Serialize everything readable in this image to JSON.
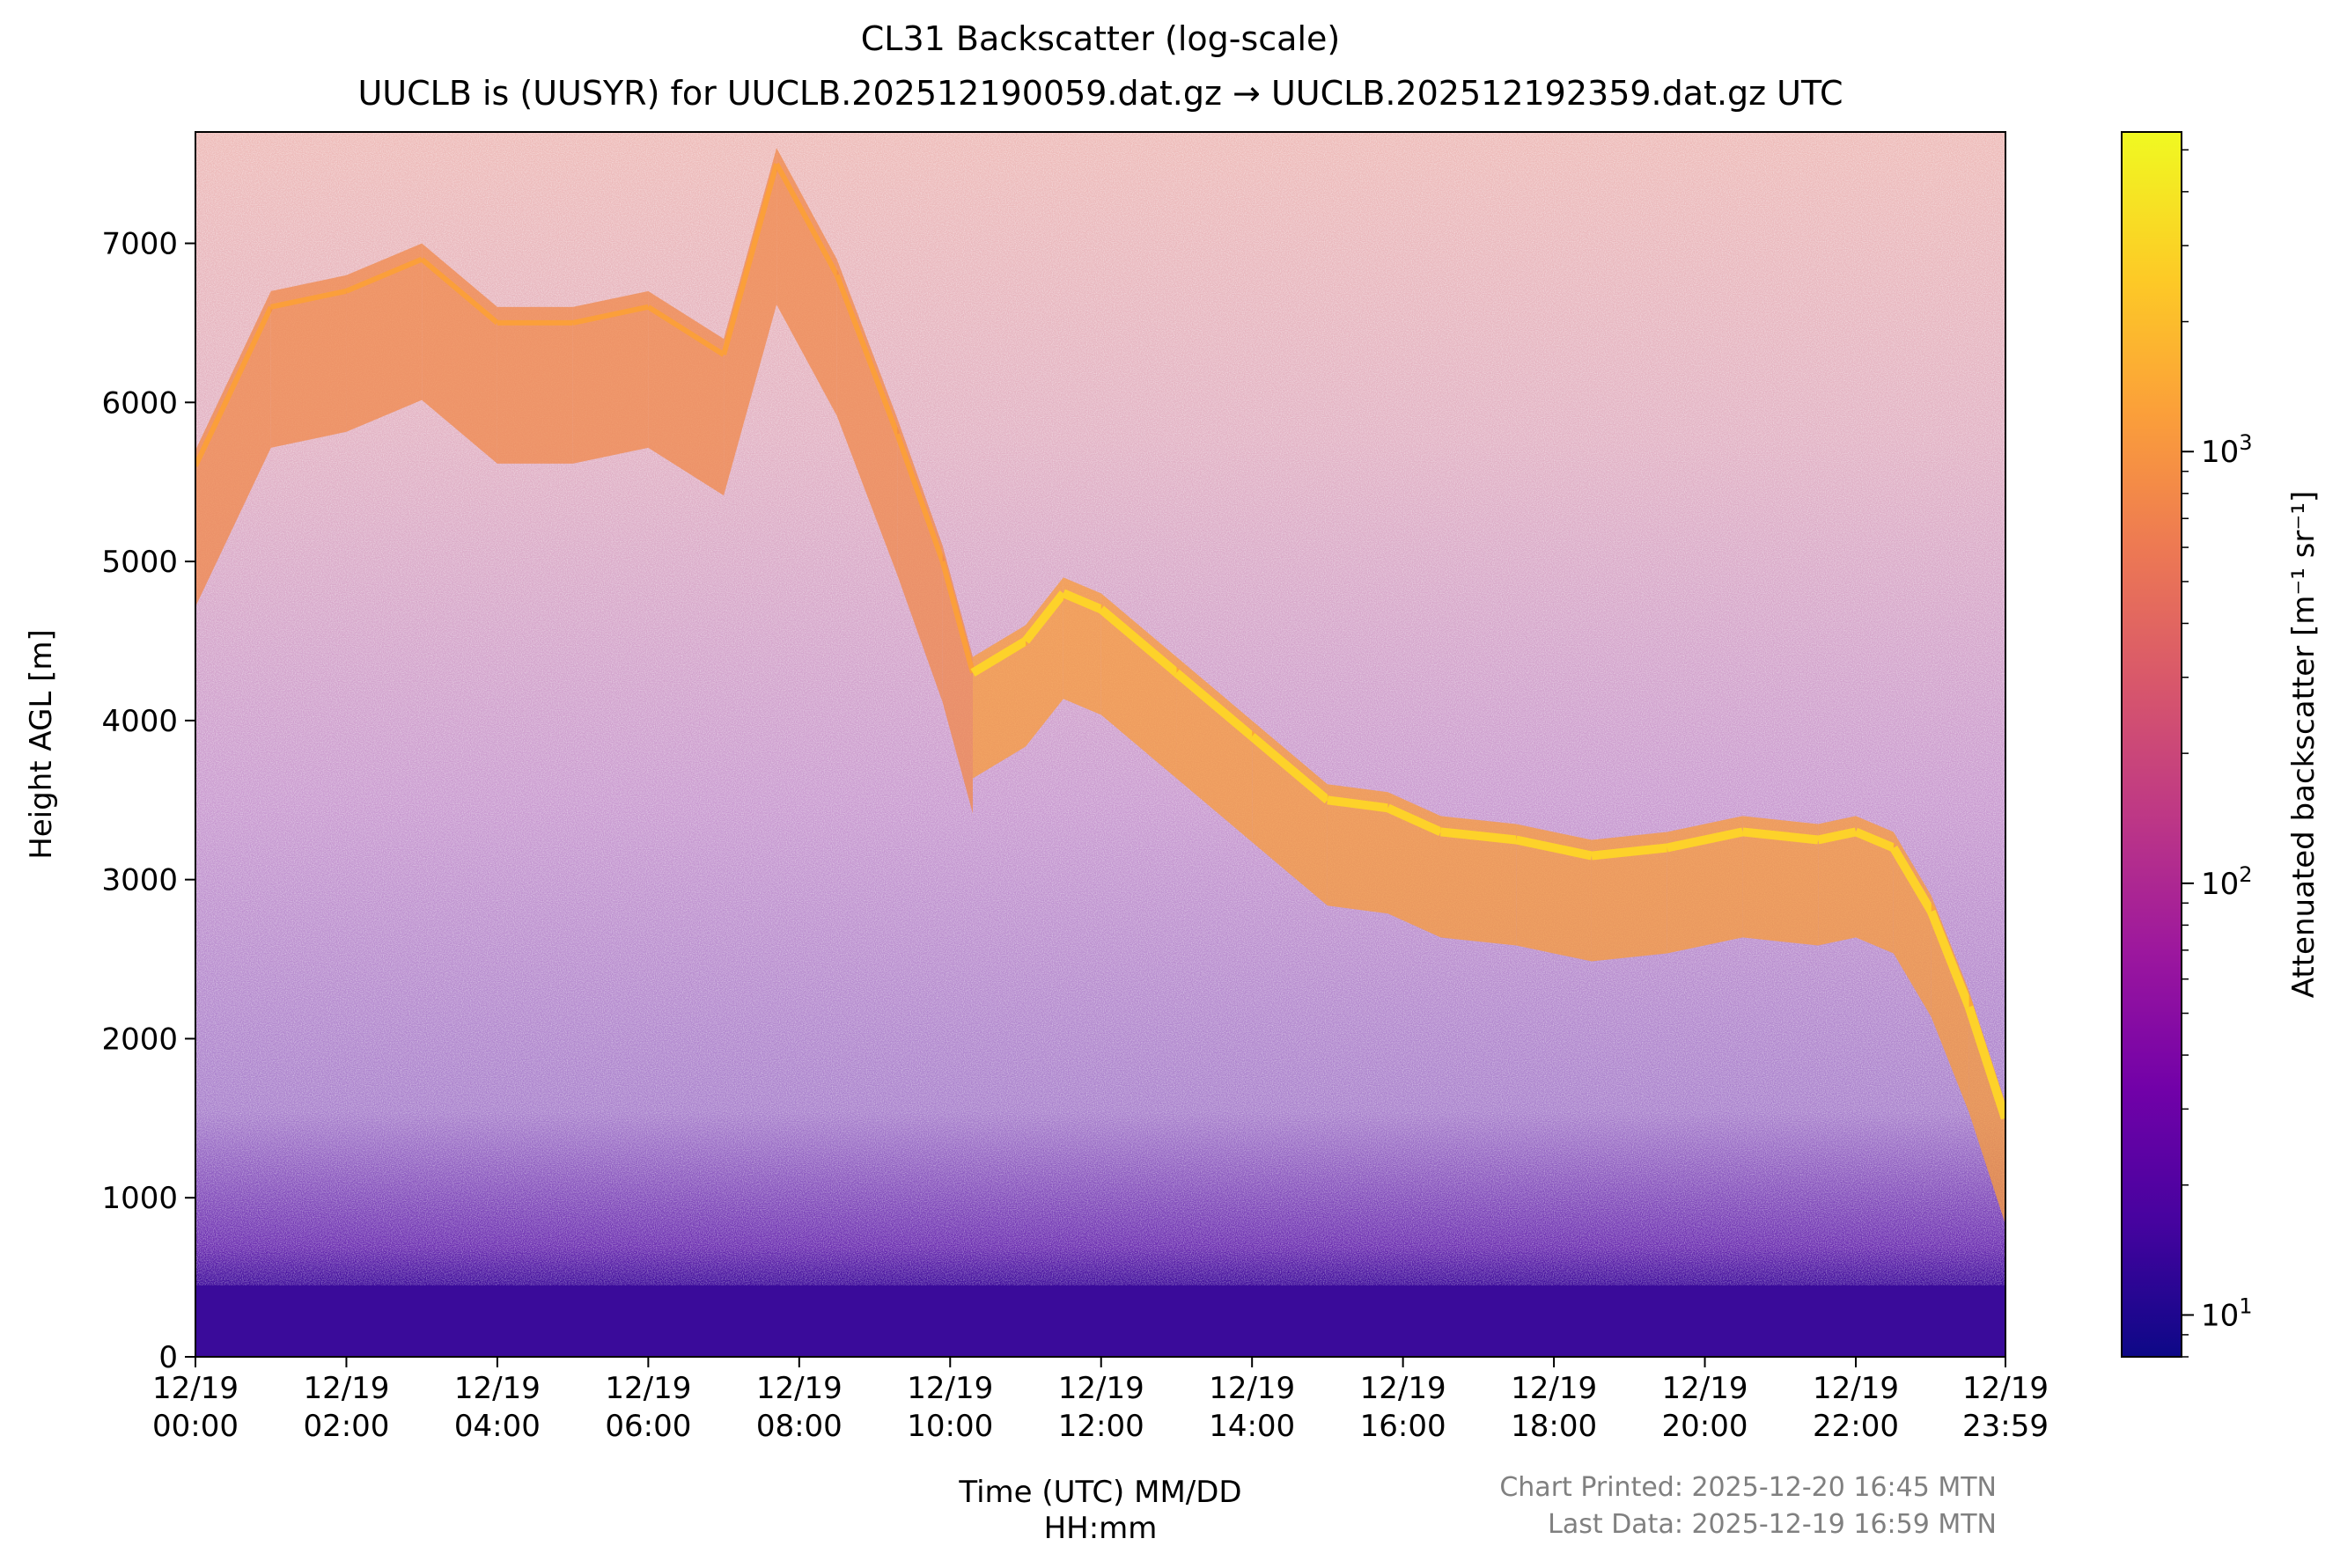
{
  "chart_data": {
    "type": "heatmap",
    "title": "CL31 Backscatter (log-scale)",
    "subtitle": "UUCLB is (UUSYR) for UUCLB.202512190059.dat.gz → UUCLB.202512192359.dat.gz UTC",
    "xlabel_line1": "Time (UTC) MM/DD",
    "xlabel_line2": "HH:mm",
    "ylabel": "Height AGL [m]",
    "colorbar_label": "Attenuated backscatter [m⁻¹ sr⁻¹]",
    "colorbar_scale": "log",
    "colorbar_range": [
      8,
      5500
    ],
    "colorbar_ticks": [
      {
        "value": 10,
        "base": "10",
        "exp": "1"
      },
      {
        "value": 100,
        "base": "10",
        "exp": "2"
      },
      {
        "value": 1000,
        "base": "10",
        "exp": "3"
      }
    ],
    "colormap": "plasma",
    "colormap_stops": [
      "#0d0887",
      "#46039f",
      "#7201a8",
      "#9c179e",
      "#bd3786",
      "#d8576b",
      "#ed7953",
      "#fb9f3a",
      "#fdca26",
      "#f0f921"
    ],
    "xlim_hours": [
      0,
      23.983
    ],
    "ylim": [
      0,
      7700
    ],
    "x_ticks": [
      {
        "hour": 0,
        "date": "12/19",
        "time": "00:00"
      },
      {
        "hour": 2,
        "date": "12/19",
        "time": "02:00"
      },
      {
        "hour": 4,
        "date": "12/19",
        "time": "04:00"
      },
      {
        "hour": 6,
        "date": "12/19",
        "time": "06:00"
      },
      {
        "hour": 8,
        "date": "12/19",
        "time": "08:00"
      },
      {
        "hour": 10,
        "date": "12/19",
        "time": "10:00"
      },
      {
        "hour": 12,
        "date": "12/19",
        "time": "12:00"
      },
      {
        "hour": 14,
        "date": "12/19",
        "time": "14:00"
      },
      {
        "hour": 16,
        "date": "12/19",
        "time": "16:00"
      },
      {
        "hour": 18,
        "date": "12/19",
        "time": "18:00"
      },
      {
        "hour": 20,
        "date": "12/19",
        "time": "20:00"
      },
      {
        "hour": 22,
        "date": "12/19",
        "time": "22:00"
      },
      {
        "hour": 23.983,
        "date": "12/19",
        "time": "23:59"
      }
    ],
    "y_ticks": [
      0,
      1000,
      2000,
      3000,
      4000,
      5000,
      6000,
      7000
    ],
    "cloud_layer": {
      "description_hours": [
        0,
        1,
        2,
        3,
        4,
        5,
        6,
        7,
        7.7,
        8.5,
        9.3,
        9.9,
        10.3,
        11,
        11.5,
        12,
        13,
        14,
        15,
        15.8,
        16.5,
        17.5,
        18.5,
        19.5,
        20.5,
        21.5,
        22,
        22.5,
        23,
        23.5,
        23.98
      ],
      "height_m": [
        5600,
        6600,
        6700,
        6900,
        6500,
        6500,
        6600,
        6300,
        7500,
        6800,
        5800,
        5000,
        4300,
        4500,
        4800,
        4700,
        4300,
        3900,
        3500,
        3450,
        3300,
        3250,
        3150,
        3200,
        3300,
        3250,
        3300,
        3200,
        2800,
        2200,
        1500
      ]
    },
    "boundary_layer_top_m": 450
  },
  "footer": {
    "printed": "Chart Printed: 2025-12-20 16:45 MTN",
    "last_data": "Last Data: 2025-12-19 16:59 MTN"
  }
}
